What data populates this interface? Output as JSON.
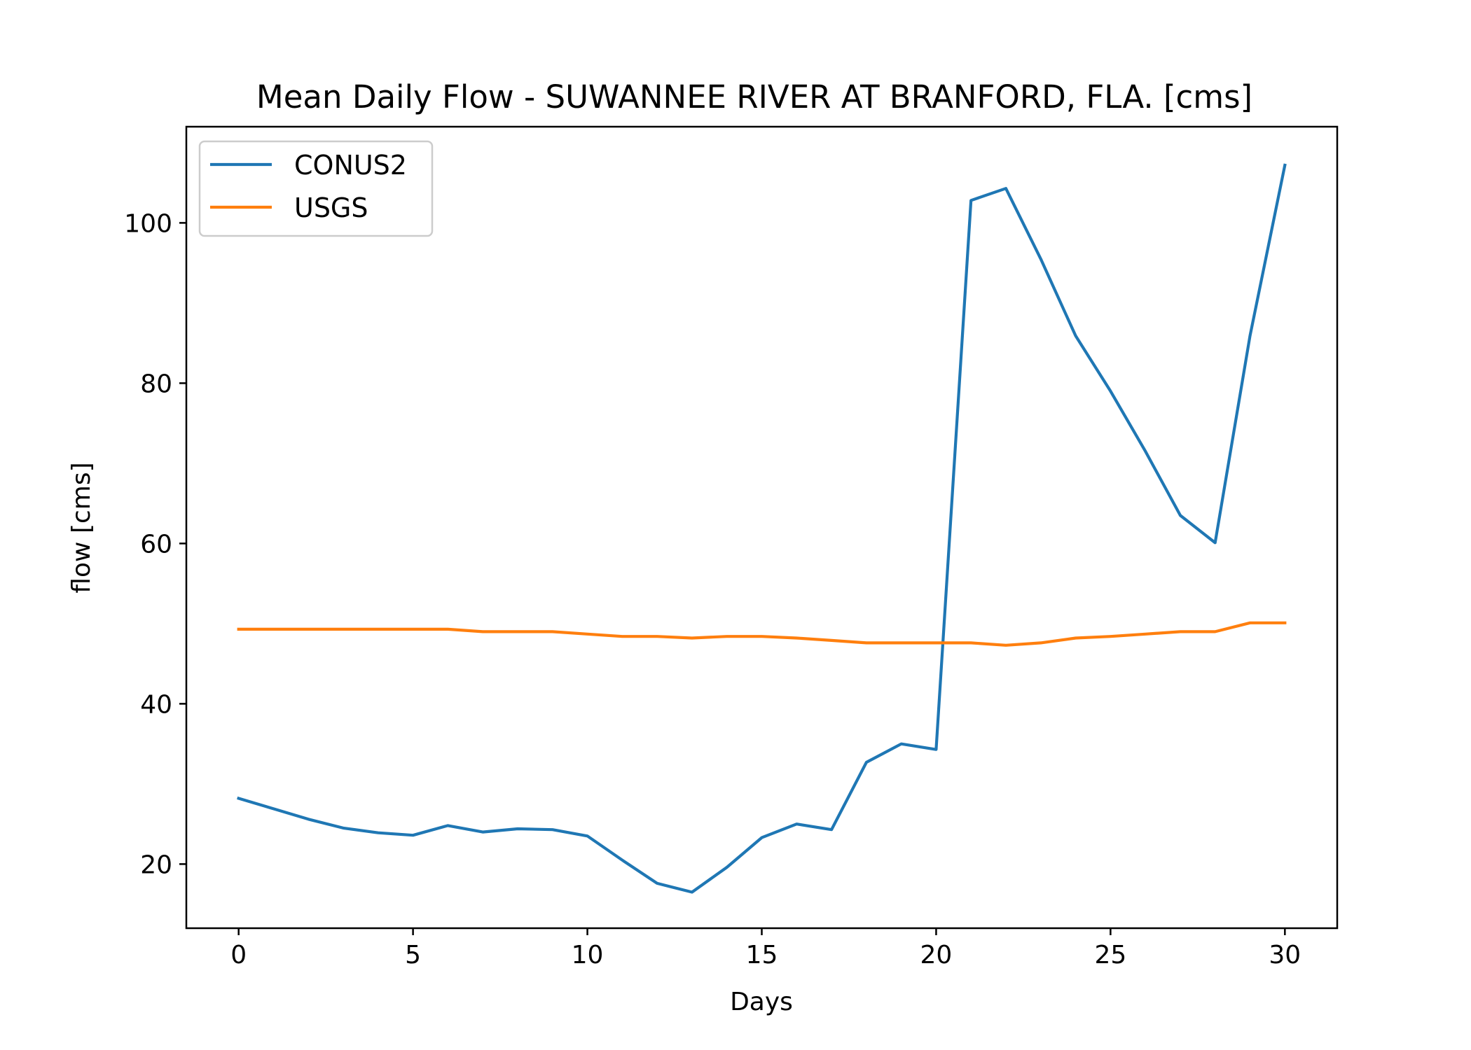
{
  "chart_data": {
    "type": "line",
    "title": "Mean Daily Flow - SUWANNEE RIVER AT BRANFORD, FLA. [cms]",
    "xlabel": "Days",
    "ylabel": "flow [cms]",
    "xlim": [
      -1.5,
      31.5
    ],
    "ylim": [
      12,
      112
    ],
    "xticks": [
      0,
      5,
      10,
      15,
      20,
      25,
      30
    ],
    "yticks": [
      20,
      40,
      60,
      80,
      100
    ],
    "grid": false,
    "legend_position": "top-left",
    "x": [
      0,
      1,
      2,
      3,
      4,
      5,
      6,
      7,
      8,
      9,
      10,
      11,
      12,
      13,
      14,
      15,
      16,
      17,
      18,
      19,
      20,
      21,
      22,
      23,
      24,
      25,
      26,
      27,
      28,
      29,
      30
    ],
    "series": [
      {
        "name": "CONUS2",
        "color": "#1f77b4",
        "values": [
          28.2,
          26.9,
          25.6,
          24.5,
          23.9,
          23.6,
          24.8,
          24.0,
          24.4,
          24.3,
          23.5,
          20.5,
          17.6,
          16.5,
          19.6,
          23.3,
          25.0,
          24.3,
          32.7,
          35.0,
          34.3,
          102.8,
          104.3,
          95.5,
          85.9,
          79.0,
          71.5,
          63.5,
          60.1,
          85.9,
          107.2
        ]
      },
      {
        "name": "USGS",
        "color": "#ff7f0e",
        "values": [
          49.3,
          49.3,
          49.3,
          49.3,
          49.3,
          49.3,
          49.3,
          49.0,
          49.0,
          49.0,
          48.7,
          48.4,
          48.4,
          48.2,
          48.4,
          48.4,
          48.2,
          47.9,
          47.6,
          47.6,
          47.6,
          47.6,
          47.3,
          47.6,
          48.2,
          48.4,
          48.7,
          49.0,
          49.0,
          50.1,
          50.1
        ]
      }
    ]
  }
}
